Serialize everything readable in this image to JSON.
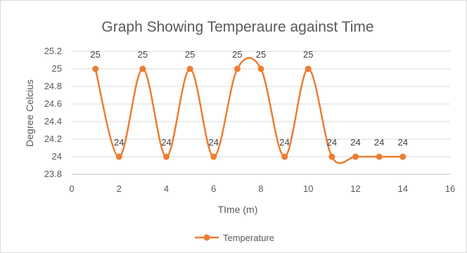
{
  "chart_data": {
    "type": "line",
    "title": "Graph Showing Temperaure against Time",
    "xlabel": "TIme (m)",
    "ylabel": "Degree Celcius",
    "xlim": [
      0,
      16
    ],
    "ylim": [
      23.8,
      25.2
    ],
    "x_ticks": [
      "0",
      "2",
      "4",
      "6",
      "8",
      "10",
      "12",
      "14",
      "16"
    ],
    "y_ticks": [
      "23.8",
      "24",
      "24.2",
      "24.4",
      "24.6",
      "24.8",
      "25",
      "25.2"
    ],
    "grid": "horizontal",
    "smoothed": true,
    "legend_position": "bottom",
    "series": [
      {
        "name": "Temperature",
        "color": "#ed7d31",
        "x": [
          1,
          2,
          3,
          4,
          5,
          6,
          7,
          8,
          9,
          10,
          11,
          12,
          13,
          14
        ],
        "values": [
          25,
          24,
          25,
          24,
          25,
          24,
          25,
          25,
          24,
          25,
          24,
          24,
          24,
          24
        ],
        "data_labels": [
          "25",
          "24",
          "25",
          "24",
          "25",
          "24",
          "25",
          "25",
          "24",
          "25",
          "24",
          "24",
          "24",
          "24"
        ]
      }
    ]
  }
}
